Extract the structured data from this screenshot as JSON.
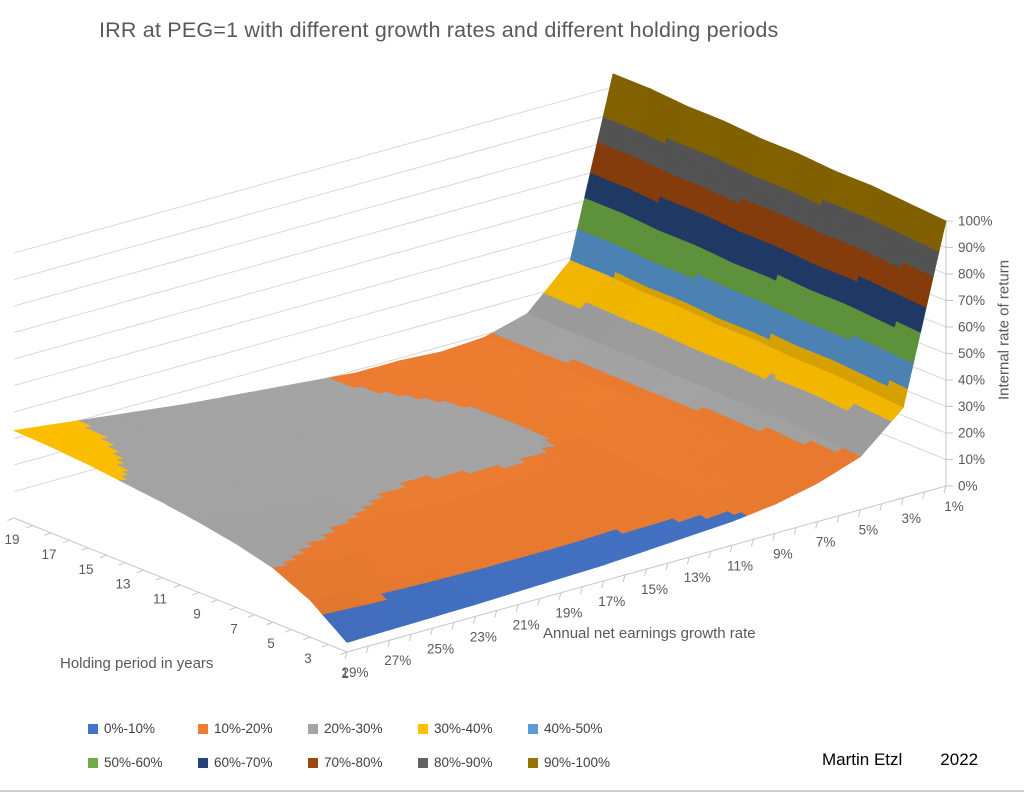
{
  "title": "IRR at PEG=1 with different growth rates and different holding periods",
  "credit": {
    "author": "Martin Etzl",
    "year": "2022"
  },
  "chart_data": {
    "type": "surface3d",
    "title": "IRR at PEG=1 with different growth rates and different holding periods",
    "x": {
      "label": "Annual net earnings growth rate",
      "categories": [
        "1%",
        "3%",
        "5%",
        "7%",
        "9%",
        "11%",
        "13%",
        "15%",
        "17%",
        "19%",
        "21%",
        "23%",
        "25%",
        "27%",
        "29%"
      ]
    },
    "depth": {
      "label": "Holding period in years",
      "categories": [
        "1",
        "3",
        "5",
        "7",
        "9",
        "11",
        "13",
        "15",
        "17",
        "19"
      ]
    },
    "z": {
      "label": "Internal rate of return",
      "ticks": [
        "0%",
        "10%",
        "20%",
        "30%",
        "40%",
        "50%",
        "60%",
        "70%",
        "80%",
        "90%",
        "100%"
      ],
      "min": 0,
      "max": 100,
      "unit": "%"
    },
    "bands": [
      {
        "label": "0%-10%",
        "color": "#4472C4"
      },
      {
        "label": "10%-20%",
        "color": "#ED7D31"
      },
      {
        "label": "20%-30%",
        "color": "#A5A5A5"
      },
      {
        "label": "30%-40%",
        "color": "#FFC000"
      },
      {
        "label": "40%-50%",
        "color": "#5B9BD5"
      },
      {
        "label": "50%-60%",
        "color": "#70AD47"
      },
      {
        "label": "60%-70%",
        "color": "#264478"
      },
      {
        "label": "70%-80%",
        "color": "#9E480E"
      },
      {
        "label": "80%-90%",
        "color": "#636363"
      },
      {
        "label": "90%-100%",
        "color": "#997300"
      }
    ],
    "series": [
      {
        "holding": 1,
        "values": [
          100,
          34,
          20,
          14.5,
          11,
          9,
          8,
          7,
          6,
          5.5,
          5,
          4.5,
          4.2,
          3.9,
          3.6
        ]
      },
      {
        "holding": 3,
        "values": [
          101,
          35,
          21,
          16,
          13,
          12,
          11,
          11,
          10.5,
          10.5,
          10.5,
          11,
          11.5,
          12.5,
          14
        ]
      },
      {
        "holding": 5,
        "values": [
          102,
          36,
          22,
          17,
          15,
          14.5,
          15,
          15.5,
          15,
          14.5,
          15,
          16,
          17,
          18.5,
          20.5
        ]
      },
      {
        "holding": 7,
        "values": [
          102,
          36,
          22,
          18,
          16.5,
          16.5,
          18,
          19,
          18.5,
          18,
          18.5,
          19.5,
          20.5,
          22,
          24
        ]
      },
      {
        "holding": 9,
        "values": [
          103,
          37,
          22.5,
          18.5,
          17.5,
          18,
          20.5,
          21,
          20.5,
          20,
          20.5,
          21.5,
          23,
          24.5,
          26.5
        ]
      },
      {
        "holding": 11,
        "values": [
          103,
          37,
          22.5,
          18.5,
          18,
          18.5,
          21,
          21.5,
          21.5,
          21.5,
          22,
          23.5,
          25,
          26.5,
          28.5
        ]
      },
      {
        "holding": 13,
        "values": [
          104,
          38,
          23,
          18.5,
          18,
          19,
          20.5,
          21.5,
          22,
          22.5,
          23.5,
          25,
          26.5,
          28,
          30
        ]
      },
      {
        "holding": 15,
        "values": [
          104,
          38,
          23,
          19,
          18,
          19,
          20,
          21,
          22,
          23,
          24.5,
          26,
          27.5,
          29.5,
          31.5
        ]
      },
      {
        "holding": 17,
        "values": [
          105,
          39,
          23,
          19,
          18,
          19,
          19.5,
          20.5,
          22,
          23.5,
          25,
          26.5,
          28.5,
          30.5,
          32.5
        ]
      },
      {
        "holding": 19,
        "values": [
          105,
          39,
          23.5,
          19,
          18,
          19,
          19,
          20.5,
          22,
          23.5,
          25,
          27,
          29,
          31,
          33
        ]
      }
    ],
    "grid_color": "#d9d9d9",
    "axis_color": "#c6c6c6",
    "label_color": "#595959"
  }
}
